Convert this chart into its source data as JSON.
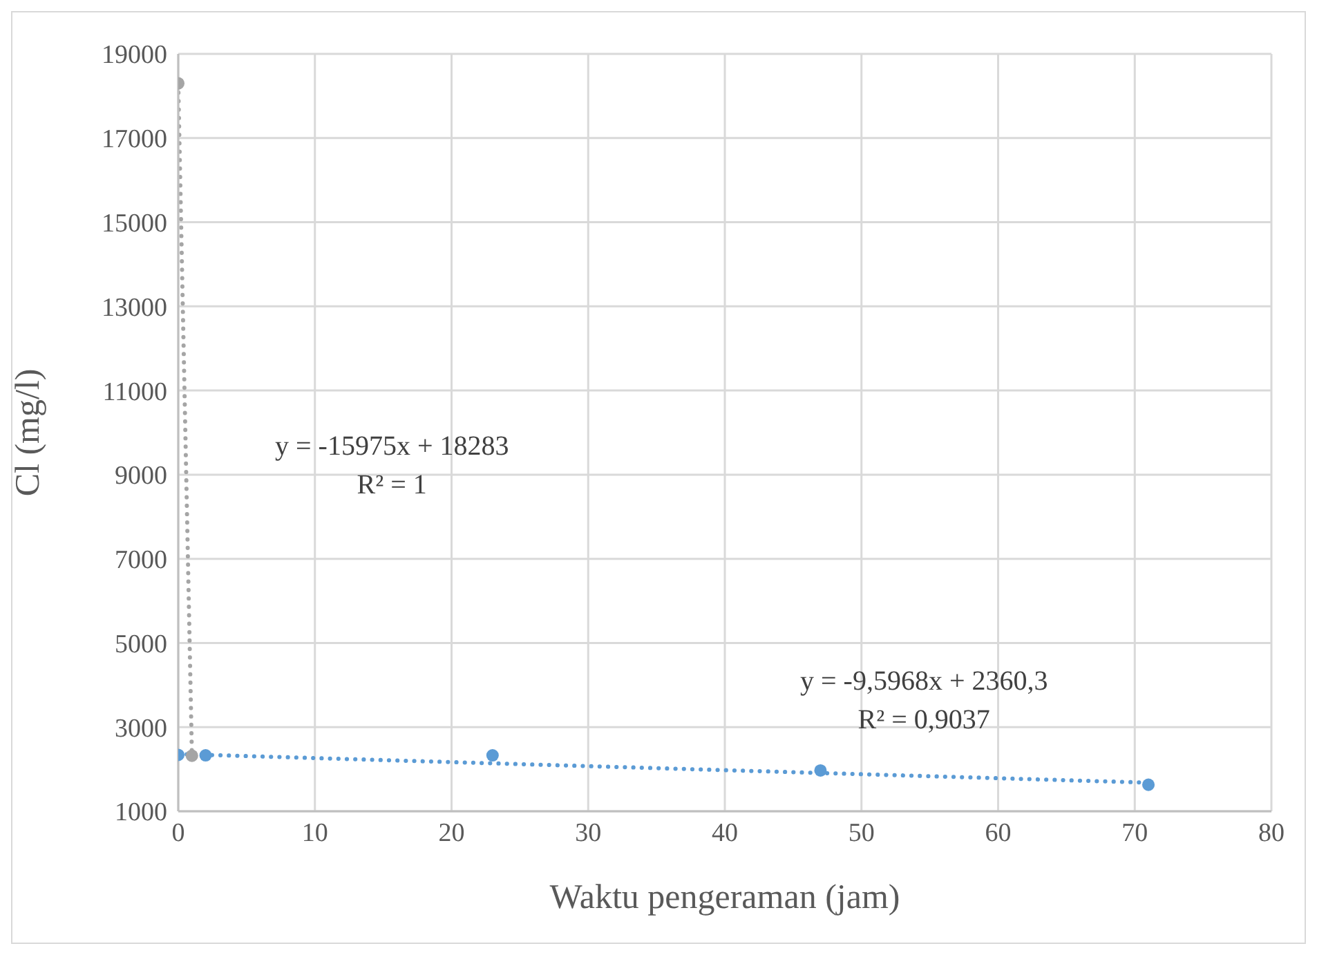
{
  "chart_data": {
    "type": "scatter",
    "xlabel": "Waktu pengeraman (jam)",
    "ylabel": "Cl (mg/l)",
    "series": [
      {
        "color": "#5b9bd5",
        "x": [
          0,
          2,
          23,
          47,
          71
        ],
        "values": [
          2340,
          2330,
          2330,
          1970,
          1630
        ],
        "marker": "circle"
      },
      {
        "color": "#a5a5a5",
        "x": [
          0,
          1
        ],
        "values": [
          18300,
          2320
        ],
        "marker": "circle"
      },
      {
        "type": "line",
        "color": "#5b9bd5",
        "x": [
          0,
          71
        ],
        "values": [
          2360,
          1680
        ],
        "line_style": "dotted",
        "marker": "none"
      },
      {
        "type": "line",
        "color": "#a5a5a5",
        "x": [
          0,
          1
        ],
        "values": [
          18280,
          2310
        ],
        "line_style": "dotted",
        "marker": "none"
      }
    ],
    "annotations": [
      "y = -15975x + 18283\nR² = 1",
      "y = -9,5968x + 2360,3\nR² = 0,9037"
    ],
    "xlim": [
      0,
      80
    ],
    "xticks": [
      0,
      10,
      20,
      30,
      40,
      50,
      60,
      70,
      80
    ],
    "ylim": [
      1000,
      19000
    ],
    "yticks": [
      1000,
      3000,
      5000,
      7000,
      9000,
      11000,
      13000,
      15000,
      17000,
      19000
    ],
    "grid": true
  }
}
